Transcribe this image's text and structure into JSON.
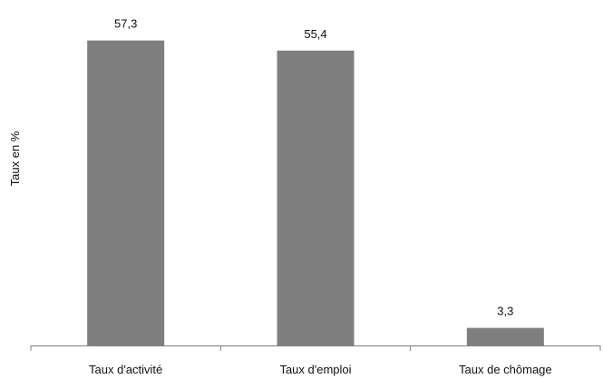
{
  "chart_data": {
    "type": "bar",
    "title": "",
    "xlabel": "",
    "ylabel": "Taux en %",
    "categories": [
      "Taux d'activité",
      "Taux d'emploi",
      "Taux de chômage"
    ],
    "values": [
      57.3,
      55.4,
      3.3
    ],
    "data_labels": [
      "57,3",
      "55,4",
      "3,3"
    ],
    "ylim": [
      0,
      60
    ],
    "grid": false,
    "legend": "none",
    "bar_color": "#7f7f7f"
  }
}
